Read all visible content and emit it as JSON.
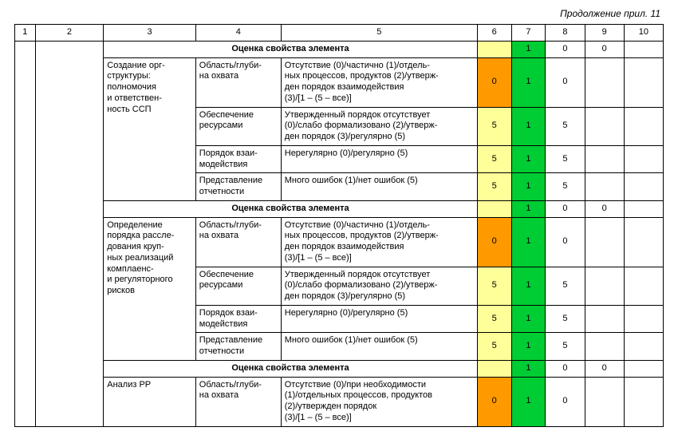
{
  "caption": "Продолжение прил. 11",
  "colors": {
    "yellow": "#ffff99",
    "orange": "#ff9900",
    "green": "#00cc33",
    "white": "#ffffff",
    "header_bg": "#ffffff"
  },
  "headers": [
    "1",
    "2",
    "3",
    "4",
    "5",
    "6",
    "7",
    "8",
    "9",
    "10"
  ],
  "section_label": "Оценка свойства элемента",
  "blocks": [
    {
      "summary": {
        "c6": "",
        "c6_color": "yellow",
        "c7": "1",
        "c7_color": "green",
        "c8": "0",
        "c9": "0",
        "c10": ""
      },
      "c3": "Создание орг-\nструктуры:\nполномочия\nи ответствен-\nность ССП",
      "rows": [
        {
          "c4": "Область/глуби-\nна охвата",
          "c5": "Отсутствие (0)/частично (1)/отдель-\nных процессов, продуктов (2)/утверж-\nден порядок взаимодействия\n(3)/[1 – (5 – все)]",
          "c6": "0",
          "c6_color": "orange",
          "c7": "1",
          "c7_color": "green",
          "c8": "0",
          "c9": "",
          "c10": ""
        },
        {
          "c4": "Обеспечение\nресурсами",
          "c5": "Утвержденный порядок отсутствует\n(0)/слабо формализовано (2)/утверж-\nден порядок (3)/регулярно (5)",
          "c6": "5",
          "c6_color": "yellow",
          "c7": "1",
          "c7_color": "green",
          "c8": "5",
          "c9": "",
          "c10": ""
        },
        {
          "c4": "Порядок взаи-\nмодействия",
          "c5": "Нерегулярно (0)/регулярно (5)",
          "c6": "5",
          "c6_color": "yellow",
          "c7": "1",
          "c7_color": "green",
          "c8": "5",
          "c9": "",
          "c10": ""
        },
        {
          "c4": "Представление\nотчетности",
          "c5": "Много ошибок (1)/нет ошибок (5)",
          "c6": "5",
          "c6_color": "yellow",
          "c7": "1",
          "c7_color": "green",
          "c8": "5",
          "c9": "",
          "c10": ""
        }
      ]
    },
    {
      "summary": {
        "c6": "",
        "c6_color": "yellow",
        "c7": "1",
        "c7_color": "green",
        "c8": "0",
        "c9": "0",
        "c10": ""
      },
      "c3": "Определение\nпорядка рассле-\nдования круп-\nных реализаций\nкомплаенс-\nи регуляторного\nрисков",
      "rows": [
        {
          "c4": "Область/глуби-\nна охвата",
          "c5": "Отсутствие (0)/частично (1)/отдель-\nных процессов, продуктов (2)/утверж-\nден порядок взаимодействия\n(3)/[1 – (5 – все)]",
          "c6": "0",
          "c6_color": "orange",
          "c7": "1",
          "c7_color": "green",
          "c8": "0",
          "c9": "",
          "c10": ""
        },
        {
          "c4": "Обеспечение\nресурсами",
          "c5": "Утвержденный порядок отсутствует\n(0)/слабо формализовано (2)/утверж-\nден порядок (3)/регулярно (5)",
          "c6": "5",
          "c6_color": "yellow",
          "c7": "1",
          "c7_color": "green",
          "c8": "5",
          "c9": "",
          "c10": ""
        },
        {
          "c4": "Порядок взаи-\nмодействия",
          "c5": "Нерегулярно (0)/регулярно (5)",
          "c6": "5",
          "c6_color": "yellow",
          "c7": "1",
          "c7_color": "green",
          "c8": "5",
          "c9": "",
          "c10": ""
        },
        {
          "c4": "Представление\nотчетности",
          "c5": "Много ошибок (1)/нет ошибок (5)",
          "c6": "5",
          "c6_color": "yellow",
          "c7": "1",
          "c7_color": "green",
          "c8": "5",
          "c9": "",
          "c10": ""
        }
      ]
    },
    {
      "summary": {
        "c6": "",
        "c6_color": "yellow",
        "c7": "1",
        "c7_color": "green",
        "c8": "0",
        "c9": "0",
        "c10": ""
      },
      "c3": "Анализ РР",
      "rows": [
        {
          "c4": "Область/глуби-\nна охвата",
          "c5": "Отсутствие (0)/при необходимости\n(1)/отдельных процессов, продуктов\n(2)/утвержден порядок\n(3)/[1 – (5 – все)]",
          "c6": "0",
          "c6_color": "orange",
          "c7": "1",
          "c7_color": "green",
          "c8": "0",
          "c9": "",
          "c10": ""
        }
      ]
    }
  ]
}
